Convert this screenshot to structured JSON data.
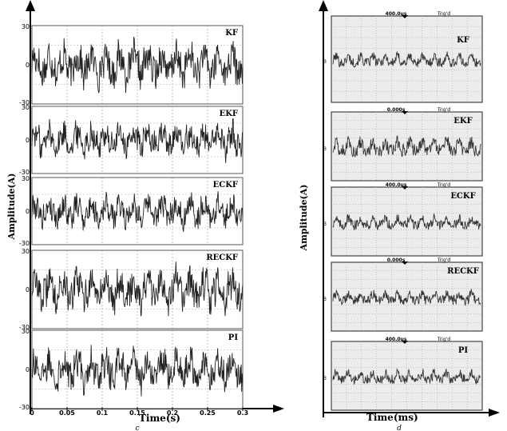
{
  "chart_data": [
    {
      "type": "line",
      "panel_label": "c",
      "xlabel": "Time(s)",
      "ylabel": "Amplitude(A)",
      "xlim": [
        0,
        0.3
      ],
      "x_ticks": [
        0,
        0.05,
        0.1,
        0.15,
        0.2,
        0.25,
        0.3
      ],
      "x_tick_labels": [
        "0",
        "0.05",
        "0.1",
        "0.15",
        "0.2",
        "0.25",
        "0.3"
      ],
      "ylim": [
        -30,
        30
      ],
      "y_tick_labels": [
        "30",
        "0",
        "-30"
      ],
      "grid": true,
      "series": [
        {
          "name": "KF",
          "amplitude": 15
        },
        {
          "name": "EKF",
          "amplitude": 14
        },
        {
          "name": "ECKF",
          "amplitude": 13
        },
        {
          "name": "RECKF",
          "amplitude": 15
        },
        {
          "name": "PI",
          "amplitude": 14
        }
      ]
    },
    {
      "type": "line",
      "panel_label": "d",
      "xlabel": "Time(ms)",
      "ylabel": "Amplitude(A)",
      "grid": true,
      "scope_header": {
        "timebase_a": "400.0us",
        "timebase_b": "0.000s",
        "trigger": "Trig'd"
      },
      "y_tick_labels": [
        "3"
      ],
      "series": [
        {
          "name": "KF",
          "header": "400.0us"
        },
        {
          "name": "EKF",
          "header": "0.000s"
        },
        {
          "name": "ECKF",
          "header": "400.0us"
        },
        {
          "name": "RECKF",
          "header": "0.000s"
        },
        {
          "name": "PI",
          "header": "400.0us"
        }
      ]
    }
  ]
}
